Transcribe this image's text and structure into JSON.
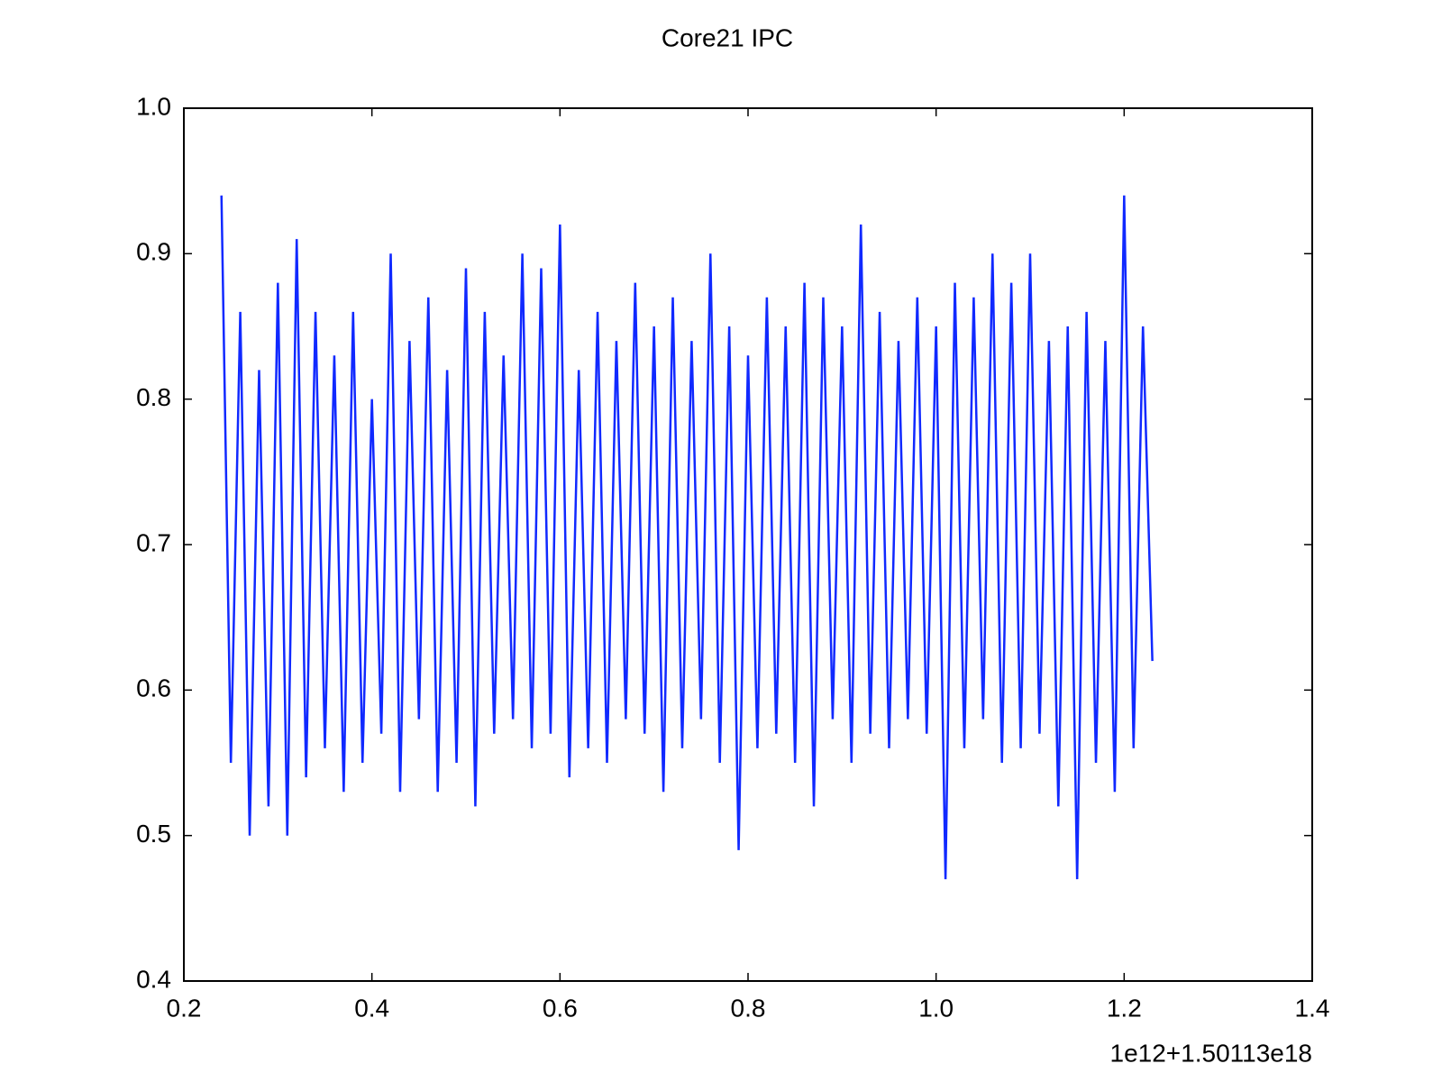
{
  "chart_data": {
    "type": "line",
    "title": "Core21 IPC",
    "annotation": "1e12+1.50113e18",
    "color": "#1029ff",
    "xlim": [
      0.2,
      1.4
    ],
    "xticks": [
      0.2,
      0.4,
      0.6,
      0.8,
      {
        "value": 1.0,
        "label": "1.0"
      },
      1.2,
      1.4
    ],
    "ylim": [
      0.4,
      1.0
    ],
    "yticks": [
      0.4,
      0.5,
      0.6,
      0.7,
      0.8,
      0.9,
      {
        "value": 1.0,
        "label": "1.0"
      }
    ],
    "grid": false,
    "x": [
      0.24,
      0.25,
      0.26,
      0.27,
      0.28,
      0.29,
      0.3,
      0.31,
      0.32,
      0.33,
      0.34,
      0.35,
      0.36,
      0.37,
      0.38,
      0.39,
      0.4,
      0.41,
      0.42,
      0.43,
      0.44,
      0.45,
      0.46,
      0.47,
      0.48,
      0.49,
      0.5,
      0.51,
      0.52,
      0.53,
      0.54,
      0.55,
      0.56,
      0.57,
      0.58,
      0.59,
      0.6,
      0.61,
      0.62,
      0.63,
      0.64,
      0.65,
      0.66,
      0.67,
      0.68,
      0.69,
      0.7,
      0.71,
      0.72,
      0.73,
      0.74,
      0.75,
      0.76,
      0.77,
      0.78,
      0.79,
      0.8,
      0.81,
      0.82,
      0.83,
      0.84,
      0.85,
      0.86,
      0.87,
      0.88,
      0.89,
      0.9,
      0.91,
      0.92,
      0.93,
      0.94,
      0.95,
      0.96,
      0.97,
      0.98,
      0.99,
      1.0,
      1.01,
      1.02,
      1.03,
      1.04,
      1.05,
      1.06,
      1.07,
      1.08,
      1.09,
      1.1,
      1.11,
      1.12,
      1.13,
      1.14,
      1.15,
      1.16,
      1.17,
      1.18,
      1.19,
      1.2,
      1.21,
      1.22,
      1.23
    ],
    "values": [
      0.94,
      0.55,
      0.86,
      0.5,
      0.82,
      0.52,
      0.88,
      0.5,
      0.91,
      0.54,
      0.86,
      0.56,
      0.83,
      0.53,
      0.86,
      0.55,
      0.8,
      0.57,
      0.9,
      0.53,
      0.84,
      0.58,
      0.87,
      0.53,
      0.82,
      0.55,
      0.89,
      0.52,
      0.86,
      0.57,
      0.83,
      0.58,
      0.9,
      0.56,
      0.89,
      0.57,
      0.92,
      0.54,
      0.82,
      0.56,
      0.86,
      0.55,
      0.84,
      0.58,
      0.88,
      0.57,
      0.85,
      0.53,
      0.87,
      0.56,
      0.84,
      0.58,
      0.9,
      0.55,
      0.85,
      0.49,
      0.83,
      0.56,
      0.87,
      0.57,
      0.85,
      0.55,
      0.88,
      0.52,
      0.87,
      0.58,
      0.85,
      0.55,
      0.92,
      0.57,
      0.86,
      0.56,
      0.84,
      0.58,
      0.87,
      0.57,
      0.85,
      0.47,
      0.88,
      0.56,
      0.87,
      0.58,
      0.9,
      0.55,
      0.88,
      0.56,
      0.9,
      0.57,
      0.84,
      0.52,
      0.85,
      0.47,
      0.86,
      0.55,
      0.84,
      0.53,
      0.94,
      0.56,
      0.85,
      0.62
    ]
  }
}
